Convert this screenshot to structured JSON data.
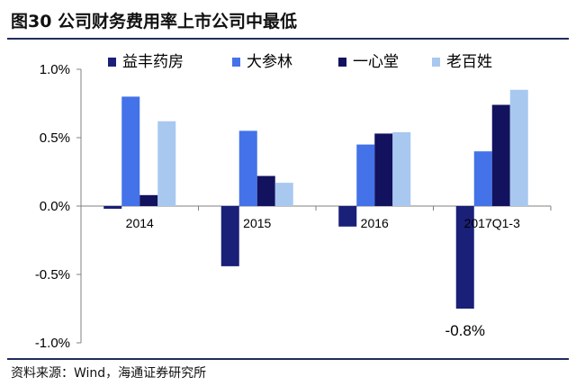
{
  "header": {
    "title": "图30 公司财务费用率上市公司中最低"
  },
  "footer": {
    "source": "资料来源：Wind，海通证券研究所"
  },
  "chart_data": {
    "type": "bar",
    "title": "",
    "xlabel": "",
    "ylabel": "",
    "categories": [
      "2014",
      "2015",
      "2016",
      "2017Q1-3"
    ],
    "ylim": [
      -1.0,
      1.0
    ],
    "yticks": [
      1.0,
      0.5,
      0.0,
      -0.5,
      -1.0
    ],
    "ytick_labels": [
      "1.0%",
      "0.5%",
      "0.0%",
      "-0.5%",
      "-1.0%"
    ],
    "grid": false,
    "legend_position": "top",
    "series": [
      {
        "name": "益丰药房",
        "color": "#1a1f78",
        "values": [
          -0.02,
          -0.44,
          -0.15,
          -0.75
        ]
      },
      {
        "name": "大参林",
        "color": "#4472e8",
        "values": [
          0.8,
          0.55,
          0.45,
          0.4
        ]
      },
      {
        "name": "一心堂",
        "color": "#12125e",
        "values": [
          0.08,
          0.22,
          0.53,
          0.74
        ]
      },
      {
        "name": "老百姓",
        "color": "#a8c8f0",
        "values": [
          0.62,
          0.17,
          0.54,
          0.85
        ]
      }
    ],
    "annotations": [
      {
        "text": "-0.8%",
        "series": "益丰药房",
        "category": "2017Q1-3"
      }
    ]
  }
}
